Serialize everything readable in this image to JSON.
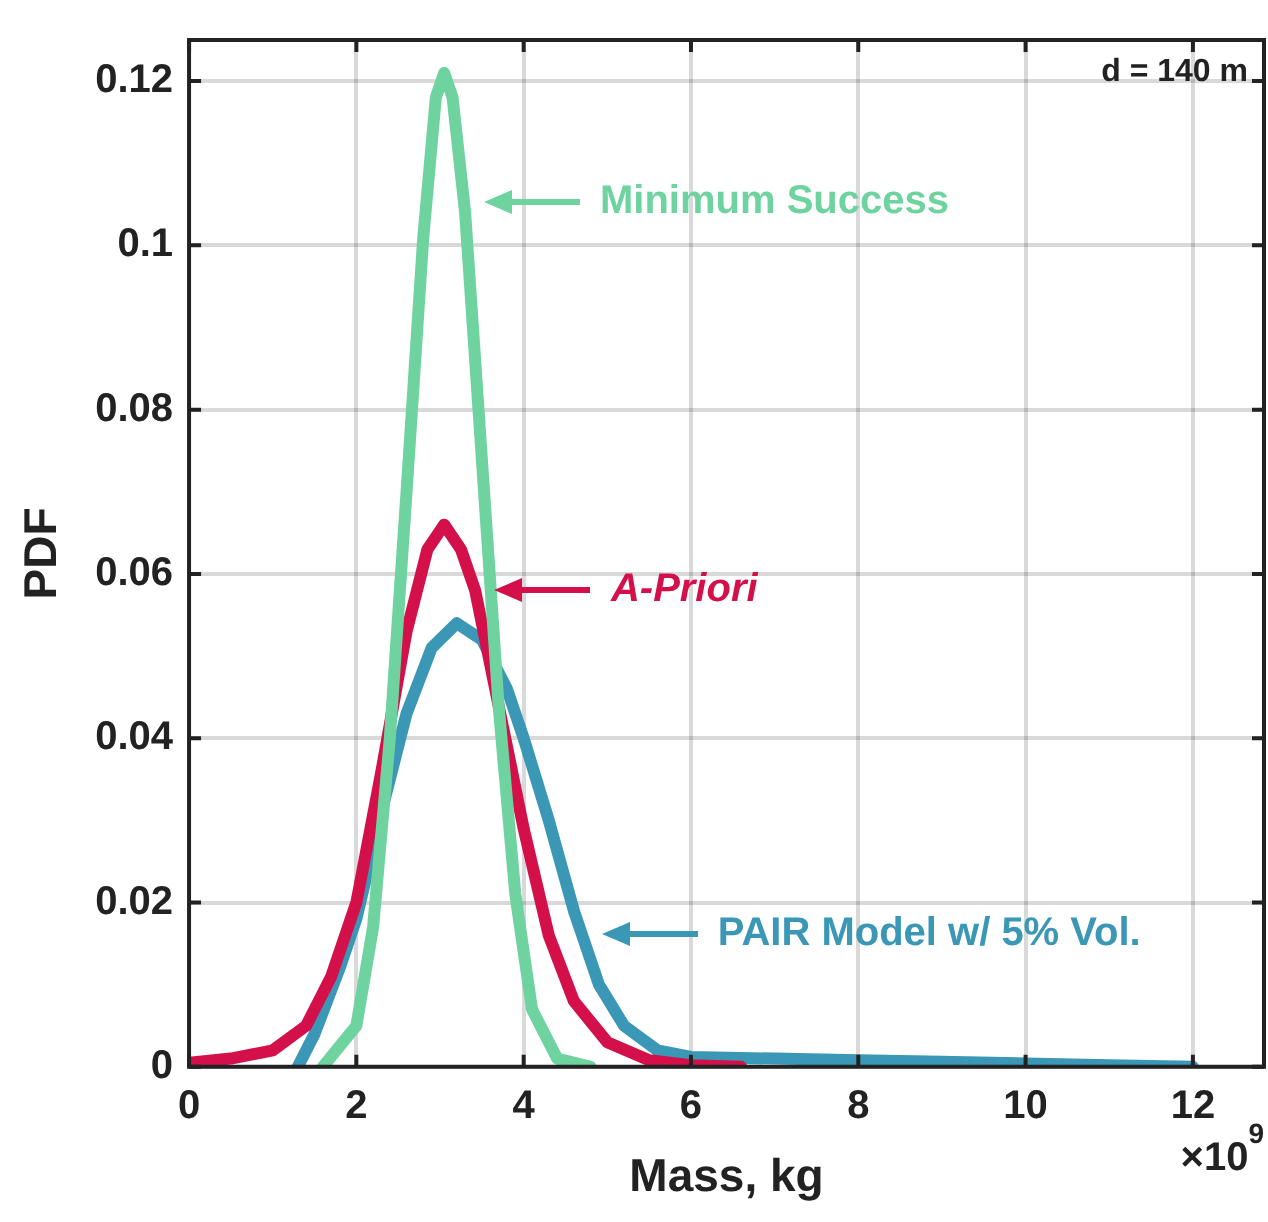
{
  "chart_data": {
    "type": "line",
    "xlabel": "Mass, kg",
    "ylabel": "PDF",
    "xlim": [
      0,
      12.85
    ],
    "xticks": [
      0,
      2,
      4,
      6,
      8,
      10,
      12
    ],
    "ylim": [
      0,
      0.125
    ],
    "yticks": [
      0,
      0.02,
      0.04,
      0.06,
      0.08,
      0.1,
      0.12
    ],
    "grid": true,
    "legend": "right",
    "marker": "none",
    "line_style": "solid",
    "series": [
      {
        "name": "Minimum Success",
        "color": "#6fd3a0",
        "x": [
          1.6,
          2.0,
          2.2,
          2.4,
          2.6,
          2.8,
          2.95,
          3.05,
          3.15,
          3.3,
          3.5,
          3.7,
          3.9,
          4.1,
          4.4,
          4.8
        ],
        "values": [
          0,
          0.005,
          0.017,
          0.04,
          0.07,
          0.101,
          0.118,
          0.121,
          0.118,
          0.104,
          0.074,
          0.044,
          0.021,
          0.007,
          0.001,
          0
        ]
      },
      {
        "name": "A-Priori",
        "color": "#d4104a",
        "x": [
          0,
          0.5,
          1.0,
          1.4,
          1.7,
          2.0,
          2.3,
          2.6,
          2.85,
          3.05,
          3.25,
          3.42,
          3.5,
          3.8,
          4.0,
          4.3,
          4.6,
          5.0,
          5.5,
          6.0,
          6.6
        ],
        "values": [
          0.0005,
          0.001,
          0.002,
          0.005,
          0.011,
          0.02,
          0.036,
          0.053,
          0.063,
          0.066,
          0.063,
          0.058,
          0.054,
          0.039,
          0.029,
          0.016,
          0.008,
          0.003,
          0.0008,
          0.0002,
          0
        ]
      },
      {
        "name": "PAIR Model w/ 5% Vol.",
        "color": "#3a97b5",
        "x": [
          1.3,
          1.5,
          1.8,
          2.0,
          2.3,
          2.6,
          2.9,
          3.2,
          3.5,
          3.8,
          4.0,
          4.3,
          4.6,
          4.7,
          4.9,
          5.2,
          5.6,
          6.0,
          7,
          8,
          9,
          10,
          11,
          12
        ],
        "values": [
          0,
          0.004,
          0.012,
          0.018,
          0.031,
          0.043,
          0.051,
          0.054,
          0.052,
          0.046,
          0.04,
          0.03,
          0.019,
          0.016,
          0.01,
          0.005,
          0.002,
          0.0012,
          0.001,
          0.0008,
          0.0006,
          0.0004,
          0.0002,
          0
        ]
      }
    ],
    "annotations": [
      "d = 140 m",
      "×10$^{9}$"
    ]
  }
}
